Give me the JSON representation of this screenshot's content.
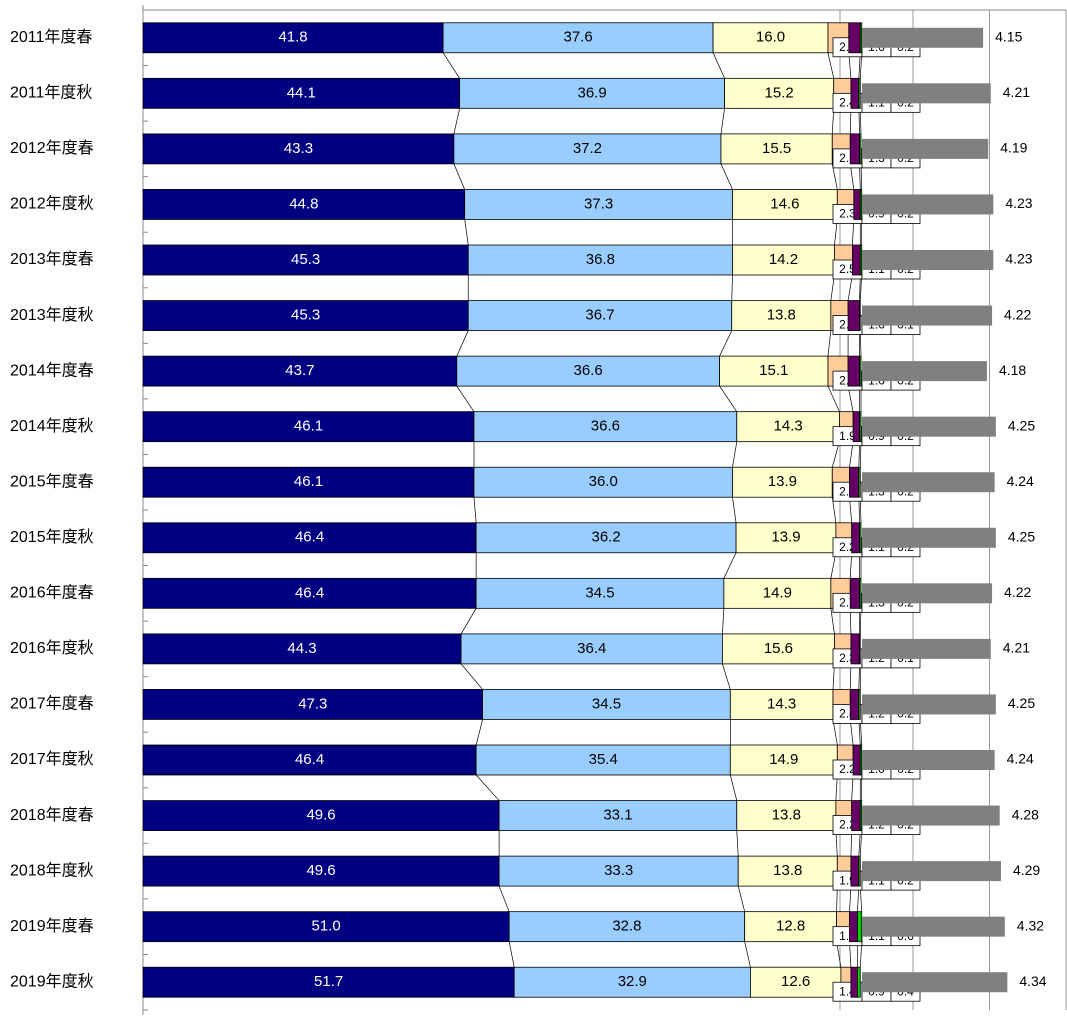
{
  "chart_data": {
    "type": "stacked-bar-horizontal",
    "categories": [
      "2011年度春",
      "2011年度秋",
      "2012年度春",
      "2012年度秋",
      "2013年度春",
      "2013年度秋",
      "2014年度春",
      "2014年度秋",
      "2015年度春",
      "2015年度秋",
      "2016年度春",
      "2016年度秋",
      "2017年度春",
      "2017年度秋",
      "2018年度春",
      "2018年度秋",
      "2019年度春",
      "2019年度秋"
    ],
    "xlim": [
      0,
      100
    ],
    "x2lim": [
      3.2,
      4.8
    ],
    "x2ticks": [
      3.6,
      4.2,
      4.8
    ],
    "series": [
      {
        "color": "#000080",
        "values": [
          41.8,
          44.1,
          43.3,
          44.8,
          45.3,
          45.3,
          43.7,
          46.1,
          46.1,
          46.4,
          46.4,
          44.3,
          47.3,
          46.4,
          49.6,
          49.6,
          51.0,
          51.7
        ],
        "value_labels": [
          "41.8",
          "44.1",
          "43.3",
          "44.8",
          "45.3",
          "45.3",
          "43.7",
          "46.1",
          "46.1",
          "46.4",
          "46.4",
          "44.3",
          "47.3",
          "46.4",
          "49.6",
          "49.6",
          "51.0",
          "51.7"
        ]
      },
      {
        "color": "#99ccff",
        "values": [
          37.6,
          36.9,
          37.2,
          37.3,
          36.8,
          36.7,
          36.6,
          36.6,
          36.0,
          36.2,
          34.5,
          36.4,
          34.5,
          35.4,
          33.1,
          33.3,
          32.8,
          32.9
        ],
        "value_labels": [
          "37.6",
          "36.9",
          "37.2",
          "37.3",
          "36.8",
          "36.7",
          "36.6",
          "36.6",
          "36.0",
          "36.2",
          "34.5",
          "36.4",
          "34.5",
          "35.4",
          "33.1",
          "33.3",
          "32.8",
          "32.9"
        ]
      },
      {
        "color": "#ffffcc",
        "values": [
          16.0,
          15.2,
          15.5,
          14.6,
          14.2,
          13.8,
          15.1,
          14.3,
          13.9,
          13.9,
          14.9,
          15.6,
          14.3,
          14.9,
          13.8,
          13.8,
          12.8,
          12.6
        ],
        "value_labels": [
          "16.0",
          "15.2",
          "15.5",
          "14.6",
          "14.2",
          "13.8",
          "15.1",
          "14.3",
          "13.9",
          "13.9",
          "14.9",
          "15.6",
          "14.3",
          "14.9",
          "13.8",
          "13.8",
          "12.8",
          "12.6"
        ]
      },
      {
        "color": "#ffcc99",
        "values": [
          2.9,
          2.4,
          2.5,
          2.3,
          2.5,
          2.4,
          2.8,
          1.9,
          2.4,
          2.2,
          2.7,
          2.3,
          2.4,
          2.2,
          2.2,
          1.9,
          1.8,
          1.4
        ],
        "value_labels": [
          "2.9",
          "2.4",
          "2.5",
          "2.3",
          "2.5",
          "2.4",
          "2.8",
          "1.9",
          "2.4",
          "2.2",
          "2.7",
          "2.3",
          "2.4",
          "2.2",
          "2.2",
          "1.9",
          "1.8",
          "1.4"
        ]
      },
      {
        "color": "#660066",
        "values": [
          1.6,
          1.1,
          1.3,
          0.9,
          1.1,
          1.6,
          1.6,
          0.9,
          1.3,
          1.1,
          1.3,
          1.2,
          1.2,
          1.0,
          1.2,
          1.1,
          1.1,
          0.9
        ],
        "value_labels": [
          "1.6",
          "1.1",
          "1.3",
          "0.9",
          "1.1",
          "1.6",
          "1.6",
          "0.9",
          "1.3",
          "1.1",
          "1.3",
          "1.2",
          "1.2",
          "1.0",
          "1.2",
          "1.1",
          "1.1",
          "0.9"
        ]
      },
      {
        "color": "#00cc00",
        "values": [
          0.2,
          0.2,
          0.2,
          0.2,
          0.2,
          0.1,
          0.2,
          0.2,
          0.2,
          0.2,
          0.2,
          0.1,
          0.2,
          0.2,
          0.2,
          0.2,
          0.6,
          0.4
        ],
        "value_labels": [
          "0.2",
          "0.2",
          "0.2",
          "0.2",
          "0.2",
          "0.1",
          "0.2",
          "0.2",
          "0.2",
          "0.2",
          "0.2",
          "0.1",
          "0.2",
          "0.2",
          "0.2",
          "0.2",
          "0.6",
          "0.4"
        ]
      },
      {
        "color": "#808080",
        "axis": "x2",
        "values": [
          4.15,
          4.21,
          4.19,
          4.23,
          4.23,
          4.22,
          4.18,
          4.25,
          4.24,
          4.25,
          4.22,
          4.21,
          4.25,
          4.24,
          4.28,
          4.29,
          4.32,
          4.34
        ]
      }
    ]
  }
}
